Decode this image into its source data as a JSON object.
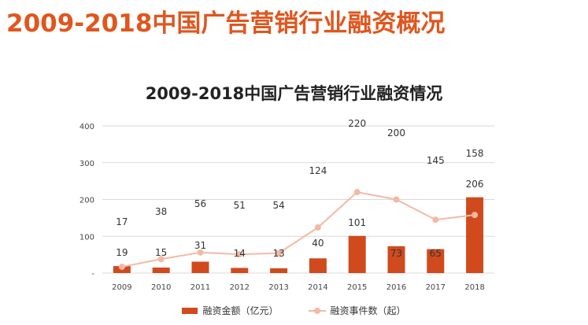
{
  "page": {
    "title": "2009-2018中国广告营销行业融资概况"
  },
  "colors": {
    "title": "#e0561e",
    "bars": "#d04a1e",
    "line": "#f4b9a4"
  },
  "chart_data": {
    "type": "bar",
    "title": "2009-2018中国广告营销行业融资情况",
    "categories": [
      "2009",
      "2010",
      "2011",
      "2012",
      "2013",
      "2014",
      "2015",
      "2016",
      "2017",
      "2018"
    ],
    "series": [
      {
        "name": "融资金额（亿元）",
        "type": "bar",
        "values": [
          19,
          15,
          31,
          14,
          13,
          40,
          101,
          73,
          65,
          206
        ]
      },
      {
        "name": "融资事件数（起）",
        "type": "line",
        "values": [
          17,
          38,
          56,
          51,
          54,
          124,
          220,
          200,
          145,
          158
        ]
      }
    ],
    "y_ticks": [
      "-",
      "100",
      "200",
      "300",
      "400"
    ],
    "ylim": [
      0,
      400
    ],
    "grid": true,
    "legend_position": "bottom"
  }
}
